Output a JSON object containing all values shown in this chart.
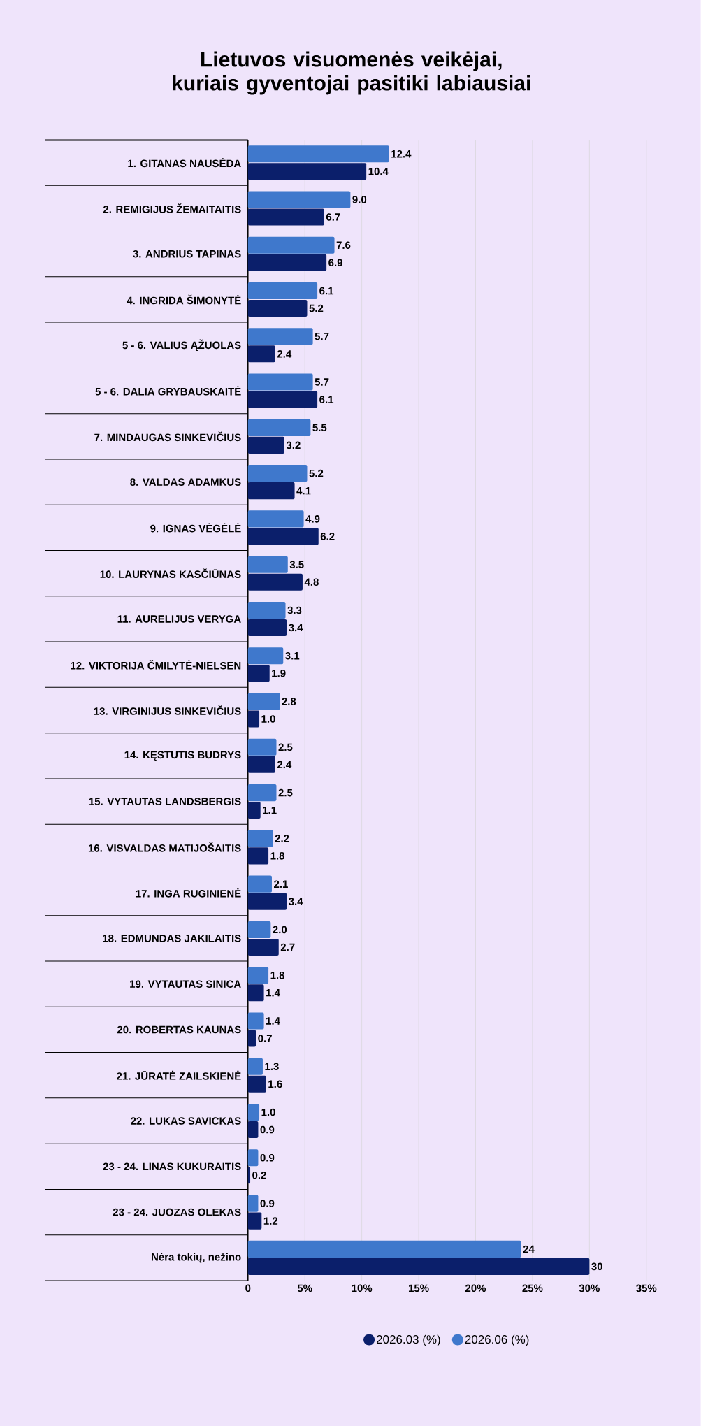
{
  "chart_data": {
    "type": "bar",
    "orientation": "horizontal",
    "title": "Lietuvos visuomenės veikėjai, kuriais gyventojai pasitiki labiausiai",
    "categories": [
      "1. GITANAS NAUSĖDA",
      "2. REMIGIJUS ŽEMAITAITIS",
      "3. ANDRIUS TAPINAS",
      "4. INGRIDA ŠIMONYTĖ",
      "5 - 6. VALIUS ĄŽUOLAS",
      "5 - 6. DALIA GRYBAUSKAITĖ",
      "7. MINDAUGAS SINKEVIČIUS",
      "8. VALDAS ADAMKUS",
      "9. IGNAS VĖGĖLĖ",
      "10. LAURYNAS KASČIŪNAS",
      "11. AURELIJUS VERYGA",
      "12. VIKTORIJA ČMILYTĖ-NIELSEN",
      "13. VIRGINIJUS SINKEVIČIUS",
      "14. KĘSTUTIS BUDRYS",
      "15. VYTAUTAS LANDSBERGIS",
      "16. VISVALDAS MATIJOŠAITIS",
      "17. INGA RUGINIENĖ",
      "18. EDMUNDAS JAKILAITIS",
      "19. VYTAUTAS SINICA",
      "20. ROBERTAS KAUNAS",
      "21. JŪRATĖ ZAILSKIENĖ",
      "22. LUKAS SAVICKAS",
      "23 - 24. LINAS KUKURAITIS",
      "23 - 24. JUOZAS OLEKAS",
      "Nėra tokių, nežino"
    ],
    "series": [
      {
        "name": "2026.03 (%)",
        "color": "#0b1f6b",
        "values": [
          10.4,
          6.7,
          6.9,
          5.2,
          2.4,
          6.1,
          3.2,
          4.1,
          6.2,
          4.8,
          3.4,
          1.9,
          1.0,
          2.4,
          1.1,
          1.8,
          3.4,
          2.7,
          1.4,
          0.7,
          1.6,
          0.9,
          0.2,
          1.2,
          30
        ],
        "value_labels": [
          "10.4",
          "6.7",
          "6.9",
          "5.2",
          "2.4",
          "6.1",
          "3.2",
          "4.1",
          "6.2",
          "4.8",
          "3.4",
          "1.9",
          "1.0",
          "2.4",
          "1.1",
          "1.8",
          "3.4",
          "2.7",
          "1.4",
          "0.7",
          "1.6",
          "0.9",
          "0.2",
          "1.2",
          "30"
        ]
      },
      {
        "name": "2026.06 (%)",
        "color": "#3f78cc",
        "values": [
          12.4,
          9.0,
          7.6,
          6.1,
          5.7,
          5.7,
          5.5,
          5.2,
          4.9,
          3.5,
          3.3,
          3.1,
          2.8,
          2.5,
          2.5,
          2.2,
          2.1,
          2.0,
          1.8,
          1.4,
          1.3,
          1.0,
          0.9,
          0.9,
          24
        ],
        "value_labels": [
          "12.4",
          "9.0",
          "7.6",
          "6.1",
          "5.7",
          "5.7",
          "5.5",
          "5.2",
          "4.9",
          "3.5",
          "3.3",
          "3.1",
          "2.8",
          "2.5",
          "2.5",
          "2.2",
          "2.1",
          "2.0",
          "1.8",
          "1.4",
          "1.3",
          "1.0",
          "0.9",
          "0.9",
          "24"
        ]
      }
    ],
    "xlim": [
      0,
      35
    ],
    "xticks": [
      0,
      {
        "value": 5,
        "label": "5%"
      },
      {
        "value": 10,
        "label": "10%"
      },
      {
        "value": 15,
        "label": "15%"
      },
      {
        "value": 20,
        "label": "20%"
      },
      {
        "value": 25,
        "label": "25%"
      },
      {
        "value": 30,
        "label": "30%"
      },
      {
        "value": 35,
        "label": "35%"
      }
    ],
    "grid": "x",
    "legend": "bottom"
  }
}
